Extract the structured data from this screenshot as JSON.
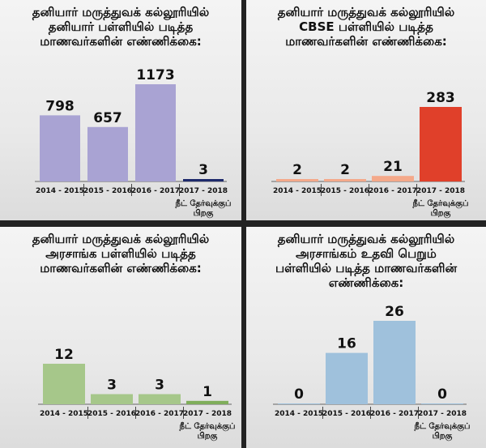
{
  "chart_data": [
    {
      "type": "bar",
      "title": "தனியார் மருத்துவக் கல்லூரியில்\nதனியார் பள்ளியில் படித்த\nமாணவர்களின் எண்ணிக்கை:",
      "categories": [
        "2014 - 2015",
        "2015 - 2016",
        "2016 - 2017",
        "2017 - 2018"
      ],
      "values": [
        798,
        657,
        1173,
        3
      ],
      "data_labels": [
        "798",
        "657",
        "1173",
        "3"
      ],
      "annotation": "நீட் தேர்வுக்குப்\nபிறகு",
      "colors": [
        "#a9a3d3",
        "#a9a3d3",
        "#a9a3d3",
        "#1e2a6b"
      ],
      "ylim": [
        0,
        1173
      ]
    },
    {
      "type": "bar",
      "title": "தனியார் மருத்துவக் கல்லூரியில்\nCBSE பள்ளியில் படித்த\nமாணவர்களின் எண்ணிக்கை:",
      "categories": [
        "2014 - 2015",
        "2015 - 2016",
        "2016 - 2017",
        "2017 - 2018"
      ],
      "values": [
        2,
        2,
        21,
        283
      ],
      "data_labels": [
        "2",
        "2",
        "21",
        "283"
      ],
      "annotation": "நீட் தேர்வுக்குப்\nபிறகு",
      "colors": [
        "#f4a98a",
        "#f4a98a",
        "#f4a98a",
        "#e0402a"
      ],
      "ylim": [
        0,
        283
      ]
    },
    {
      "type": "bar",
      "title": "தனியார் மருத்துவக் கல்லூரியில்\nஅரசாங்க பள்ளியில் படித்த\nமாணவர்களின் எண்ணிக்கை:",
      "categories": [
        "2014 - 2015",
        "2015 - 2016",
        "2016 - 2017",
        "2017 - 2018"
      ],
      "values": [
        12,
        3,
        3,
        1
      ],
      "data_labels": [
        "12",
        "3",
        "3",
        "1"
      ],
      "annotation": "நீட் தேர்வுக்குப்\nபிறகு",
      "colors": [
        "#a6c78a",
        "#a6c78a",
        "#a6c78a",
        "#7fae5a"
      ],
      "ylim": [
        0,
        12
      ]
    },
    {
      "type": "bar",
      "title": "தனியார் மருத்துவக் கல்லூரியில்\nஅரசாங்கம் உதவி பெறும்\nபள்ளியில் படித்த மாணவர்களின்\nஎண்ணிக்கை:",
      "categories": [
        "2014 - 2015",
        "2015 - 2016",
        "2016 - 2017",
        "2017 - 2018"
      ],
      "values": [
        0,
        16,
        26,
        0
      ],
      "data_labels": [
        "0",
        "16",
        "26",
        "0"
      ],
      "annotation": "நீட் தேர்வுக்குப்\nபிறகு",
      "colors": [
        "#9fc1dc",
        "#9fc1dc",
        "#9fc1dc",
        "#9fc1dc"
      ],
      "ylim": [
        0,
        26
      ]
    }
  ]
}
